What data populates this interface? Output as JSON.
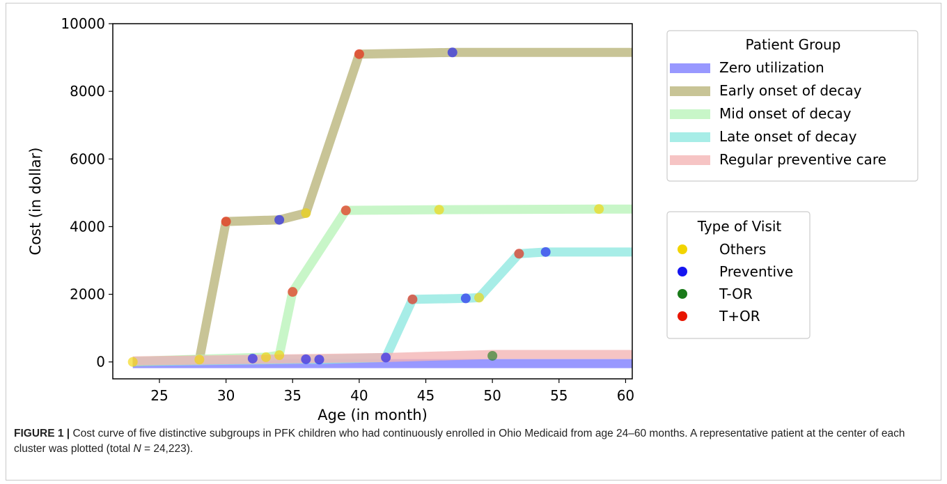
{
  "chart_data": {
    "type": "line",
    "xlabel": "Age (in month)",
    "ylabel": "Cost (in dollar)",
    "xlim": [
      21.5,
      60.5
    ],
    "ylim": [
      -500,
      10000
    ],
    "xticks": [
      25,
      30,
      35,
      40,
      45,
      50,
      55,
      60
    ],
    "yticks": [
      0,
      2000,
      4000,
      6000,
      8000,
      10000
    ],
    "grid": false,
    "series": [
      {
        "name": "Zero utilization",
        "color": "#7b7bff",
        "x": [
          23,
          60.5
        ],
        "y": [
          -50,
          -50
        ]
      },
      {
        "name": "Early onset of decay",
        "color": "#b8b478",
        "x": [
          23,
          28,
          30,
          34,
          36,
          40,
          47,
          60.5
        ],
        "y": [
          0,
          70,
          4150,
          4200,
          4400,
          9100,
          9150,
          9150
        ]
      },
      {
        "name": "Mid onset of decay",
        "color": "#b9f3b9",
        "x": [
          23,
          33,
          34,
          35,
          39,
          46,
          58,
          60.5
        ],
        "y": [
          20,
          140,
          200,
          2070,
          4480,
          4500,
          4520,
          4520
        ]
      },
      {
        "name": "Late onset of decay",
        "color": "#8ee8e0",
        "x": [
          23,
          36,
          37,
          42,
          44,
          48,
          49,
          52,
          54,
          60.5
        ],
        "y": [
          10,
          80,
          70,
          130,
          1850,
          1880,
          1900,
          3200,
          3250,
          3250
        ]
      },
      {
        "name": "Regular preventive care",
        "color": "#f4b3b3",
        "x": [
          23,
          42,
          50,
          60.5
        ],
        "y": [
          30,
          130,
          220,
          220
        ]
      }
    ],
    "points": [
      {
        "x": 23,
        "y": 0,
        "visit": "Others"
      },
      {
        "x": 28,
        "y": 70,
        "visit": "Others"
      },
      {
        "x": 30,
        "y": 4150,
        "visit": "T+OR"
      },
      {
        "x": 32,
        "y": 100,
        "visit": "Preventive"
      },
      {
        "x": 33,
        "y": 140,
        "visit": "Others"
      },
      {
        "x": 34,
        "y": 200,
        "visit": "Others"
      },
      {
        "x": 34,
        "y": 4200,
        "visit": "Preventive"
      },
      {
        "x": 35,
        "y": 2070,
        "visit": "T+OR"
      },
      {
        "x": 36,
        "y": 80,
        "visit": "Preventive"
      },
      {
        "x": 36,
        "y": 4400,
        "visit": "Others"
      },
      {
        "x": 37,
        "y": 70,
        "visit": "Preventive"
      },
      {
        "x": 39,
        "y": 4480,
        "visit": "T+OR"
      },
      {
        "x": 40,
        "y": 9100,
        "visit": "T+OR"
      },
      {
        "x": 42,
        "y": 130,
        "visit": "Preventive"
      },
      {
        "x": 44,
        "y": 1850,
        "visit": "T+OR"
      },
      {
        "x": 46,
        "y": 4500,
        "visit": "Others"
      },
      {
        "x": 47,
        "y": 9150,
        "visit": "Preventive"
      },
      {
        "x": 48,
        "y": 1880,
        "visit": "Preventive"
      },
      {
        "x": 49,
        "y": 1900,
        "visit": "Others"
      },
      {
        "x": 50,
        "y": 180,
        "visit": "T-OR"
      },
      {
        "x": 52,
        "y": 3200,
        "visit": "T+OR"
      },
      {
        "x": 54,
        "y": 3250,
        "visit": "Preventive"
      },
      {
        "x": 58,
        "y": 4520,
        "visit": "Others"
      }
    ],
    "visit_colors": {
      "Others": "#f2d400",
      "Preventive": "#1515f0",
      "T-OR": "#1a7a1a",
      "T+OR": "#e81500"
    },
    "legends": {
      "patient_group": {
        "title": "Patient Group",
        "entries": [
          "Zero utilization",
          "Early onset of decay",
          "Mid onset of decay",
          "Late onset of decay",
          "Regular preventive care"
        ]
      },
      "visit_type": {
        "title": "Type of Visit",
        "entries": [
          "Others",
          "Preventive",
          "T-OR",
          "T+OR"
        ]
      }
    },
    "legend_placement": "right"
  },
  "caption": {
    "label": "FIGURE 1 |",
    "text_before_n": " Cost curve of five distinctive subgroups in PFK children who had continuously enrolled in Ohio Medicaid from age 24–60 months. A representative patient at the center of each cluster was plotted (total ",
    "n_symbol": "N",
    "text_after_n": " = 24,223)."
  }
}
